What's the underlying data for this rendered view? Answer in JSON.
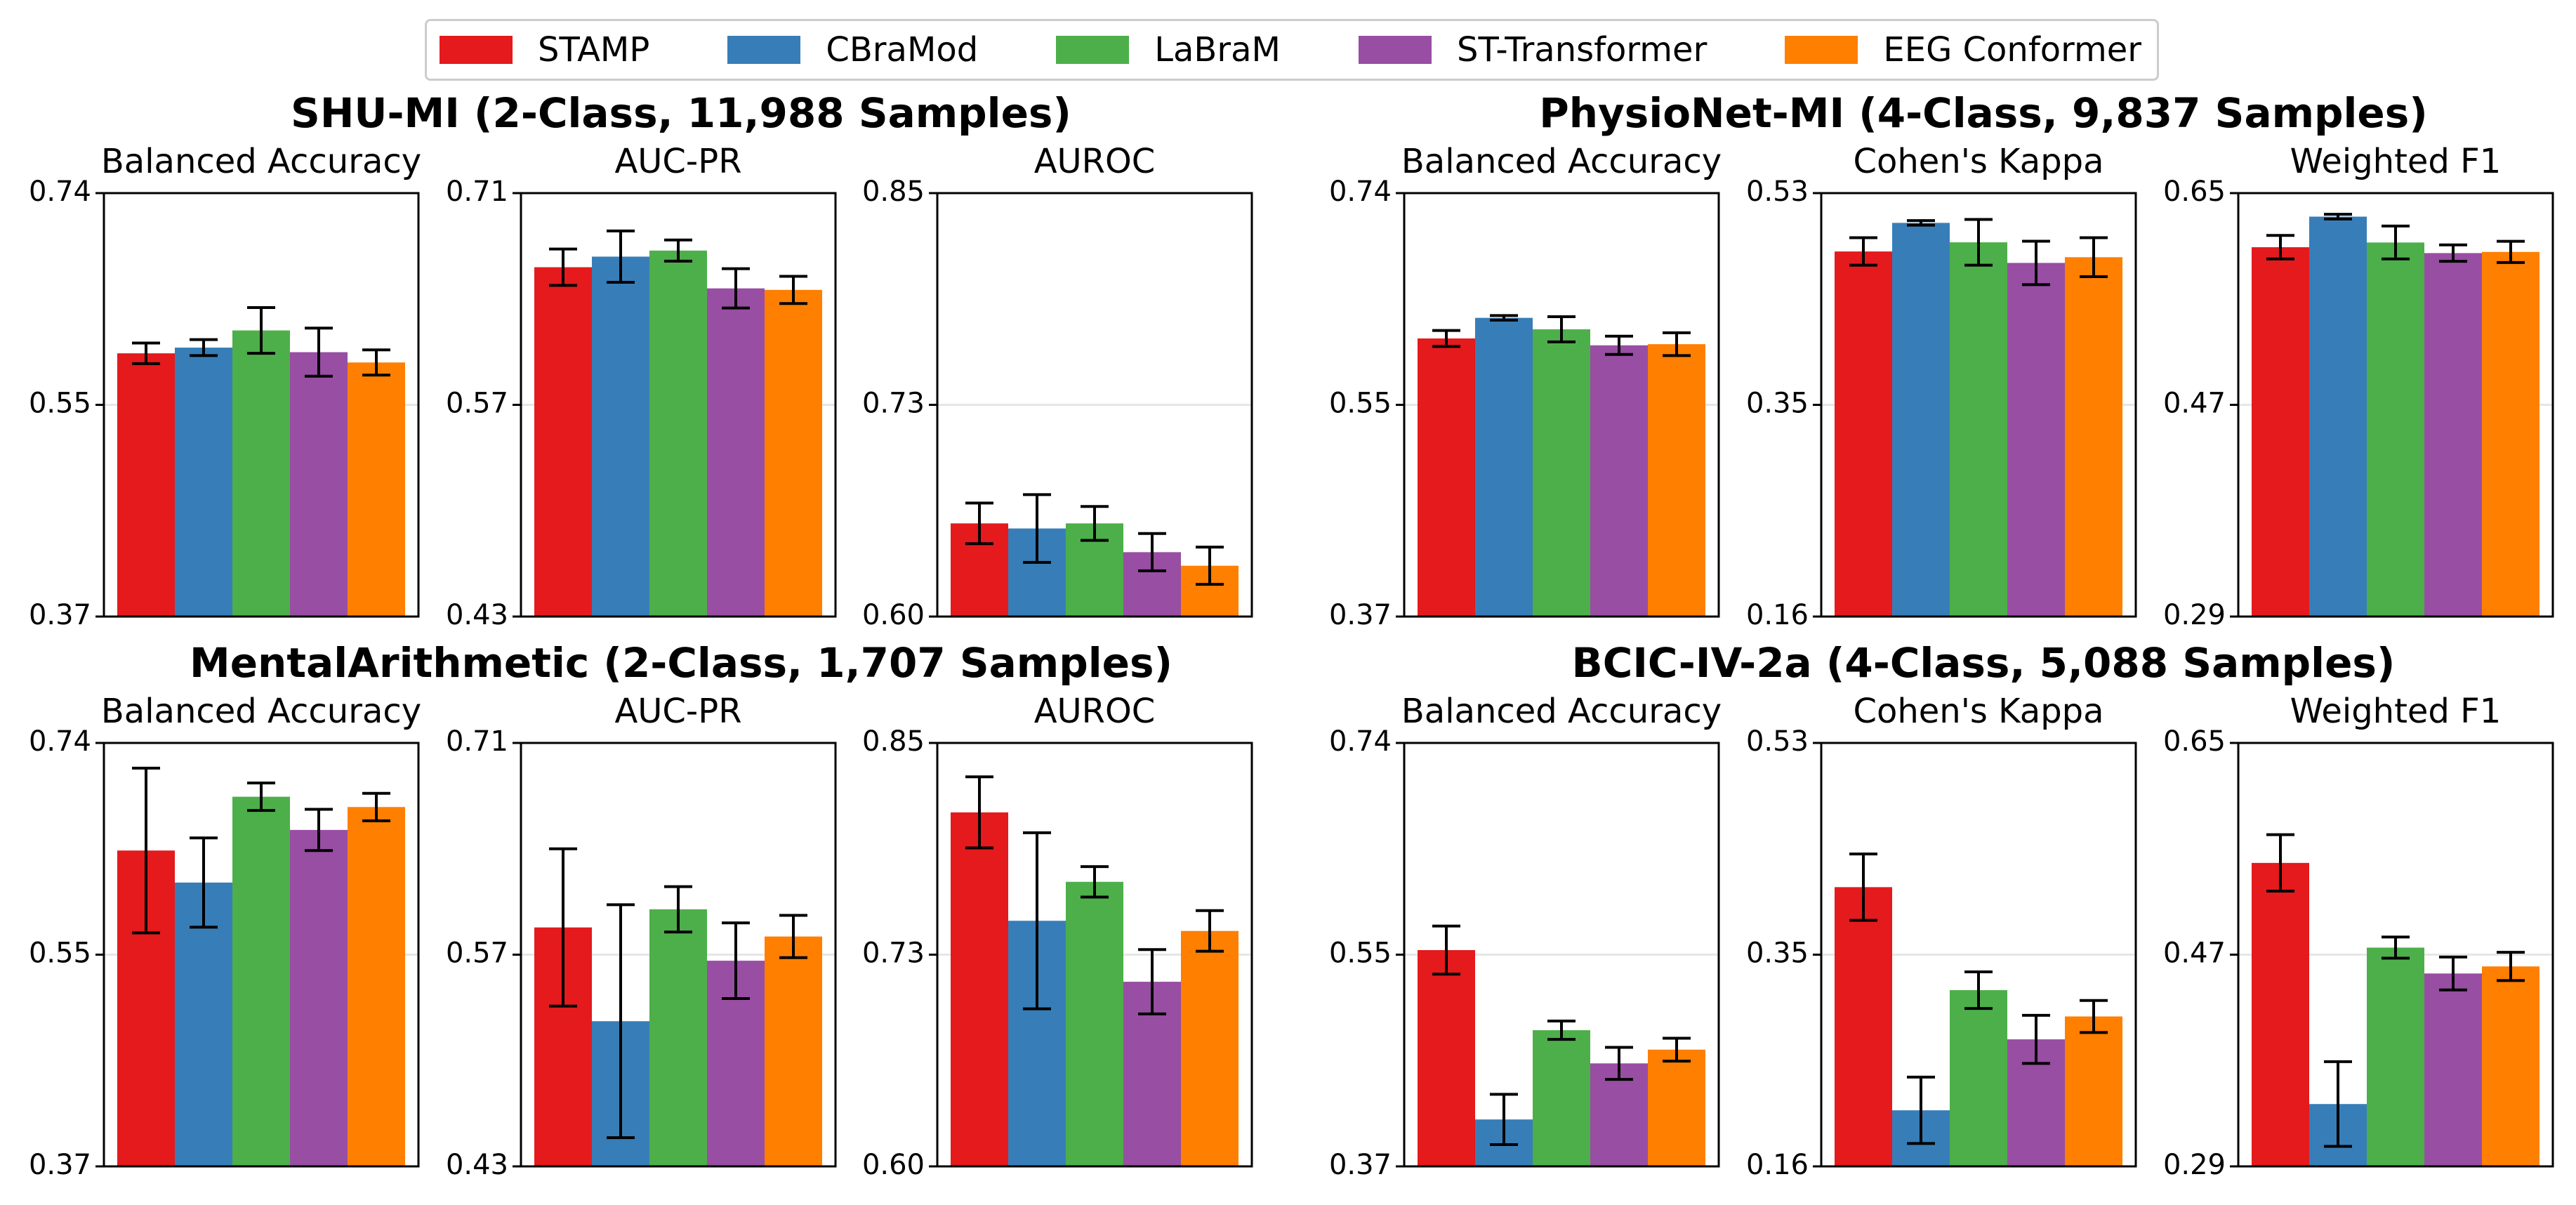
{
  "legend": [
    {
      "name": "STAMP",
      "color": "#e41a1c"
    },
    {
      "name": "CBraMod",
      "color": "#377eb8"
    },
    {
      "name": "LaBraM",
      "color": "#4daf4a"
    },
    {
      "name": "ST-Transformer",
      "color": "#984ea3"
    },
    {
      "name": "EEG Conformer",
      "color": "#ff7f00"
    }
  ],
  "chart_data": [
    {
      "type": "bar",
      "group": "SHU-MI (2-Class, 11,988 Samples)",
      "title": "Balanced Accuracy",
      "ylim": [
        0.37,
        0.74
      ],
      "yticks": [
        "0.37",
        "0.55",
        "0.74"
      ],
      "categories": [
        "STAMP",
        "CBraMod",
        "LaBraM",
        "ST-Transformer",
        "EEG Conformer"
      ],
      "values": [
        0.6,
        0.605,
        0.62,
        0.601,
        0.592
      ],
      "errors": [
        0.009,
        0.007,
        0.02,
        0.021,
        0.011
      ]
    },
    {
      "type": "bar",
      "group": "SHU-MI (2-Class, 11,988 Samples)",
      "title": "AUC-PR",
      "ylim": [
        0.43,
        0.71
      ],
      "yticks": [
        "0.43",
        "0.57",
        "0.71"
      ],
      "categories": [
        "STAMP",
        "CBraMod",
        "LaBraM",
        "ST-Transformer",
        "EEG Conformer"
      ],
      "values": [
        0.661,
        0.668,
        0.672,
        0.647,
        0.646
      ],
      "errors": [
        0.012,
        0.017,
        0.007,
        0.013,
        0.009
      ]
    },
    {
      "type": "bar",
      "group": "SHU-MI (2-Class, 11,988 Samples)",
      "title": "AUROC",
      "ylim": [
        0.6,
        0.85
      ],
      "yticks": [
        "0.60",
        "0.73",
        "0.85"
      ],
      "categories": [
        "STAMP",
        "CBraMod",
        "LaBraM",
        "ST-Transformer",
        "EEG Conformer"
      ],
      "values": [
        0.655,
        0.652,
        0.655,
        0.638,
        0.63
      ],
      "errors": [
        0.012,
        0.02,
        0.01,
        0.011,
        0.011
      ]
    },
    {
      "type": "bar",
      "group": "PhysioNet-MI (4-Class, 9,837 Samples)",
      "title": "Balanced Accuracy",
      "ylim": [
        0.37,
        0.74
      ],
      "yticks": [
        "0.37",
        "0.55",
        "0.74"
      ],
      "categories": [
        "STAMP",
        "CBraMod",
        "LaBraM",
        "ST-Transformer",
        "EEG Conformer"
      ],
      "values": [
        0.613,
        0.631,
        0.621,
        0.607,
        0.608
      ],
      "errors": [
        0.007,
        0.002,
        0.011,
        0.008,
        0.01
      ]
    },
    {
      "type": "bar",
      "group": "PhysioNet-MI (4-Class, 9,837 Samples)",
      "title": "Cohen's Kappa",
      "ylim": [
        0.16,
        0.53
      ],
      "yticks": [
        "0.16",
        "0.35",
        "0.53"
      ],
      "categories": [
        "STAMP",
        "CBraMod",
        "LaBraM",
        "ST-Transformer",
        "EEG Conformer"
      ],
      "values": [
        0.479,
        0.504,
        0.487,
        0.469,
        0.474
      ],
      "errors": [
        0.012,
        0.002,
        0.02,
        0.019,
        0.017
      ]
    },
    {
      "type": "bar",
      "group": "PhysioNet-MI (4-Class, 9,837 Samples)",
      "title": "Weighted F1",
      "ylim": [
        0.29,
        0.65
      ],
      "yticks": [
        "0.29",
        "0.47",
        "0.65"
      ],
      "categories": [
        "STAMP",
        "CBraMod",
        "LaBraM",
        "ST-Transformer",
        "EEG Conformer"
      ],
      "values": [
        0.604,
        0.63,
        0.608,
        0.599,
        0.6
      ],
      "errors": [
        0.01,
        0.002,
        0.014,
        0.007,
        0.009
      ]
    },
    {
      "type": "bar",
      "group": "MentalArithmetic (2-Class, 1,707 Samples)",
      "title": "Balanced Accuracy",
      "ylim": [
        0.37,
        0.74
      ],
      "yticks": [
        "0.37",
        "0.55",
        "0.74"
      ],
      "categories": [
        "STAMP",
        "CBraMod",
        "LaBraM",
        "ST-Transformer",
        "EEG Conformer"
      ],
      "values": [
        0.646,
        0.618,
        0.693,
        0.664,
        0.684
      ],
      "errors": [
        0.072,
        0.039,
        0.012,
        0.018,
        0.012
      ]
    },
    {
      "type": "bar",
      "group": "MentalArithmetic (2-Class, 1,707 Samples)",
      "title": "AUC-PR",
      "ylim": [
        0.43,
        0.71
      ],
      "yticks": [
        "0.43",
        "0.57",
        "0.71"
      ],
      "categories": [
        "STAMP",
        "CBraMod",
        "LaBraM",
        "ST-Transformer",
        "EEG Conformer"
      ],
      "values": [
        0.588,
        0.526,
        0.6,
        0.566,
        0.582
      ],
      "errors": [
        0.052,
        0.077,
        0.015,
        0.025,
        0.014
      ]
    },
    {
      "type": "bar",
      "group": "MentalArithmetic (2-Class, 1,707 Samples)",
      "title": "AUROC",
      "ylim": [
        0.6,
        0.85
      ],
      "yticks": [
        "0.60",
        "0.73",
        "0.85"
      ],
      "categories": [
        "STAMP",
        "CBraMod",
        "LaBraM",
        "ST-Transformer",
        "EEG Conformer"
      ],
      "values": [
        0.809,
        0.745,
        0.768,
        0.709,
        0.739
      ],
      "errors": [
        0.021,
        0.052,
        0.009,
        0.019,
        0.012
      ]
    },
    {
      "type": "bar",
      "group": "BCIC-IV-2a (4-Class, 5,088 Samples)",
      "title": "Balanced Accuracy",
      "ylim": [
        0.37,
        0.74
      ],
      "yticks": [
        "0.37",
        "0.55",
        "0.74"
      ],
      "categories": [
        "STAMP",
        "CBraMod",
        "LaBraM",
        "ST-Transformer",
        "EEG Conformer"
      ],
      "values": [
        0.559,
        0.411,
        0.489,
        0.46,
        0.472
      ],
      "errors": [
        0.021,
        0.022,
        0.008,
        0.014,
        0.01
      ]
    },
    {
      "type": "bar",
      "group": "BCIC-IV-2a (4-Class, 5,088 Samples)",
      "title": "Cohen's Kappa",
      "ylim": [
        0.16,
        0.53
      ],
      "yticks": [
        "0.16",
        "0.35",
        "0.53"
      ],
      "categories": [
        "STAMP",
        "CBraMod",
        "LaBraM",
        "ST-Transformer",
        "EEG Conformer"
      ],
      "values": [
        0.404,
        0.209,
        0.314,
        0.271,
        0.291
      ],
      "errors": [
        0.029,
        0.029,
        0.016,
        0.021,
        0.014
      ]
    },
    {
      "type": "bar",
      "group": "BCIC-IV-2a (4-Class, 5,088 Samples)",
      "title": "Weighted F1",
      "ylim": [
        0.29,
        0.65
      ],
      "yticks": [
        "0.29",
        "0.47",
        "0.65"
      ],
      "categories": [
        "STAMP",
        "CBraMod",
        "LaBraM",
        "ST-Transformer",
        "EEG Conformer"
      ],
      "values": [
        0.548,
        0.343,
        0.476,
        0.454,
        0.46
      ],
      "errors": [
        0.024,
        0.036,
        0.009,
        0.014,
        0.012
      ]
    }
  ]
}
